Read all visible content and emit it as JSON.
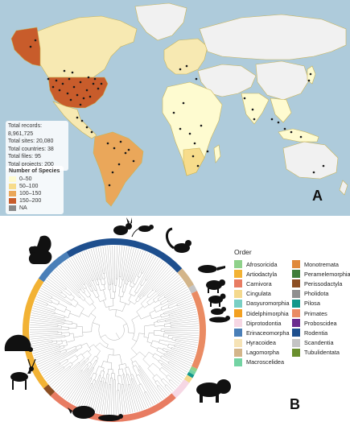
{
  "panel_a": {
    "letter": "A",
    "stats": [
      "Total records: 8,961,725",
      "Total sites: 20,080",
      "Total countries: 38",
      "Total files: 95",
      "Total projects: 200"
    ],
    "legend": {
      "title": "Number of Species",
      "items": [
        {
          "label": "0–50",
          "color": "#fefbd0"
        },
        {
          "label": "50–100",
          "color": "#f7dc8b"
        },
        {
          "label": "100–150",
          "color": "#eaa75a"
        },
        {
          "label": "150–200",
          "color": "#c85c2b"
        },
        {
          "label": "NA",
          "color": "#8a8a8a"
        }
      ]
    },
    "colors": {
      "ocean": "#aecbdb",
      "na_land": "#8f8f8f",
      "border": "#c9b458"
    }
  },
  "panel_b": {
    "letter": "B",
    "legend_title": "Order",
    "orders": [
      {
        "label": "Afrosoricida",
        "color": "#8fd18a"
      },
      {
        "label": "Monotremata",
        "color": "#e0893a"
      },
      {
        "label": "Artiodactyla",
        "color": "#f2b234"
      },
      {
        "label": "Peramelemorphia",
        "color": "#3f7d3a"
      },
      {
        "label": "Carnivora",
        "color": "#e87c62"
      },
      {
        "label": "Perissodactyla",
        "color": "#8c4e22"
      },
      {
        "label": "Cingulata",
        "color": "#f4d98e"
      },
      {
        "label": "Pholidota",
        "color": "#8f8f8f"
      },
      {
        "label": "Dasyuromorphia",
        "color": "#79cfc4"
      },
      {
        "label": "Pilosa",
        "color": "#13988c"
      },
      {
        "label": "Didelphimorphia",
        "color": "#f3a020"
      },
      {
        "label": "Primates",
        "color": "#ea8b63"
      },
      {
        "label": "Diprotodontia",
        "color": "#f6d7e4"
      },
      {
        "label": "Proboscidea",
        "color": "#6a2b8e"
      },
      {
        "label": "Erinaceomorpha",
        "color": "#4a7fb8"
      },
      {
        "label": "Rodentia",
        "color": "#1e4f8e"
      },
      {
        "label": "Hyracoidea",
        "color": "#f6e3b6"
      },
      {
        "label": "Scandentia",
        "color": "#c4c4c4"
      },
      {
        "label": "Lagomorpha",
        "color": "#d3b58a"
      },
      {
        "label": "Tubulidentata",
        "color": "#6a8f2e"
      },
      {
        "label": "Macroscelidea",
        "color": "#73d3a3"
      }
    ],
    "ring": [
      {
        "order": "Rodentia",
        "share": 0.22,
        "color": "#1e4f8e"
      },
      {
        "order": "Lagomorpha",
        "share": 0.035,
        "color": "#d3b58a"
      },
      {
        "order": "Scandentia",
        "share": 0.012,
        "color": "#c4c4c4"
      },
      {
        "order": "Primates",
        "share": 0.14,
        "color": "#ea8b63"
      },
      {
        "order": "Afrosoricida",
        "share": 0.006,
        "color": "#8fd18a"
      },
      {
        "order": "Macroscelidea",
        "share": 0.006,
        "color": "#73d3a3"
      },
      {
        "order": "Pilosa",
        "share": 0.006,
        "color": "#13988c"
      },
      {
        "order": "Cingulata",
        "share": 0.01,
        "color": "#f4d98e"
      },
      {
        "order": "Diprotodontia",
        "share": 0.035,
        "color": "#f6d7e4"
      },
      {
        "order": "Carnivora",
        "share": 0.24,
        "color": "#e87c62"
      },
      {
        "order": "Perissodactyla",
        "share": 0.018,
        "color": "#8c4e22"
      },
      {
        "order": "Artiodactyla",
        "share": 0.205,
        "color": "#f2b234"
      },
      {
        "order": "Erinaceomorpha",
        "share": 0.067,
        "color": "#4a7fb8"
      }
    ]
  }
}
